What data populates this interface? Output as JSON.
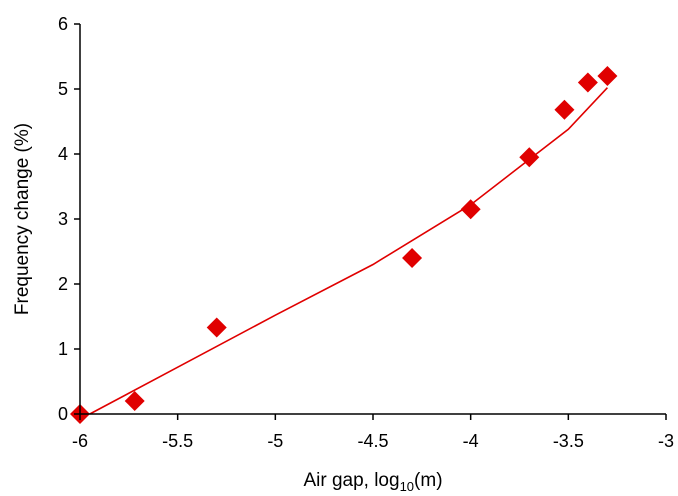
{
  "chart_data": {
    "type": "scatter",
    "xlabel": "Air gap, log",
    "xlabel_sub": "10",
    "xlabel_suffix": "(m)",
    "ylabel": "Frequency change (%)",
    "xlim": [
      -6,
      -3
    ],
    "ylim": [
      0,
      6
    ],
    "x_ticks": [
      -6,
      -5.5,
      -5,
      -4.5,
      -4,
      -3.5,
      -3
    ],
    "y_ticks": [
      0,
      1,
      2,
      3,
      4,
      5,
      6
    ],
    "x_tick_labels": [
      "-6",
      "-5.5",
      "-5",
      "-4.5",
      "-4",
      "-3.5",
      "-3"
    ],
    "y_tick_labels": [
      "0",
      "1",
      "2",
      "3",
      "4",
      "5",
      "6"
    ],
    "grid": false,
    "series": [
      {
        "marker": "diamond",
        "color": "#e00000",
        "points": [
          {
            "x": -6.0,
            "y": 0.0
          },
          {
            "x": -5.72,
            "y": 0.2
          },
          {
            "x": -5.3,
            "y": 1.33
          },
          {
            "x": -4.3,
            "y": 2.4
          },
          {
            "x": -4.0,
            "y": 3.15
          },
          {
            "x": -3.7,
            "y": 3.95
          },
          {
            "x": -3.52,
            "y": 4.68
          },
          {
            "x": -3.4,
            "y": 5.1
          },
          {
            "x": -3.3,
            "y": 5.2
          }
        ]
      }
    ],
    "trendline": {
      "color": "#e00000",
      "points": [
        {
          "x": -5.95,
          "y": 0.0
        },
        {
          "x": -5.5,
          "y": 0.72
        },
        {
          "x": -5.0,
          "y": 1.52
        },
        {
          "x": -4.5,
          "y": 2.3
        },
        {
          "x": -4.0,
          "y": 3.22
        },
        {
          "x": -3.5,
          "y": 4.38
        },
        {
          "x": -3.3,
          "y": 5.02
        }
      ]
    }
  }
}
